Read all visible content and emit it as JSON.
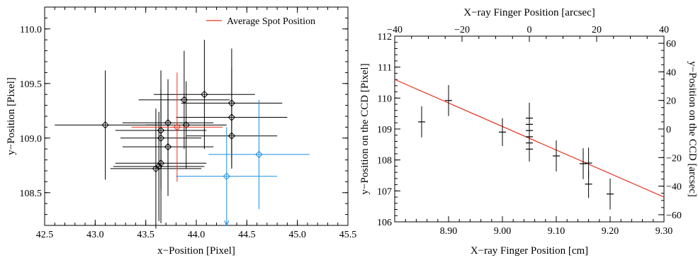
{
  "chart_data": [
    {
      "type": "scatter",
      "xlabel": "x−Position [Pixel]",
      "ylabel": "y−Position [Pixel]",
      "xlim": [
        42.5,
        45.5
      ],
      "ylim": [
        108.2,
        110.2
      ],
      "xticks": [
        "42.5",
        "43.0",
        "43.5",
        "44.0",
        "44.5",
        "45.0",
        "45.5"
      ],
      "yticks": [
        "108.5",
        "109.0",
        "109.5",
        "110.0"
      ],
      "legend": {
        "placement": "top-right",
        "label": "Average Spot Position",
        "color": "#e8321e"
      },
      "series": [
        {
          "color": "#000000",
          "marker": "diamond",
          "points": [
            {
              "x": 43.1,
              "y": 109.12,
              "xerr": 0.5,
              "yerr": 0.5
            },
            {
              "x": 43.6,
              "y": 108.72,
              "xerr": 0.45,
              "yerr": 0.55
            },
            {
              "x": 43.63,
              "y": 108.74,
              "xerr": 0.45,
              "yerr": 0.5
            },
            {
              "x": 43.65,
              "y": 108.77,
              "xerr": 0.45,
              "yerr": 0.55
            },
            {
              "x": 43.65,
              "y": 109.07,
              "xerr": 0.45,
              "yerr": 0.55
            },
            {
              "x": 43.65,
              "y": 109.0,
              "xerr": 0.4,
              "yerr": 0.45
            },
            {
              "x": 43.72,
              "y": 109.14,
              "xerr": 0.45,
              "yerr": 0.4
            },
            {
              "x": 43.72,
              "y": 108.92,
              "xerr": 0.45,
              "yerr": 0.45
            },
            {
              "x": 43.88,
              "y": 109.35,
              "xerr": 0.45,
              "yerr": 0.45
            },
            {
              "x": 43.9,
              "y": 109.12,
              "xerr": 0.4,
              "yerr": 0.4
            },
            {
              "x": 44.08,
              "y": 109.4,
              "xerr": 0.5,
              "yerr": 0.5
            },
            {
              "x": 44.35,
              "y": 109.19,
              "xerr": 0.55,
              "yerr": 0.45
            },
            {
              "x": 44.35,
              "y": 109.32,
              "xerr": 0.5,
              "yerr": 0.5
            },
            {
              "x": 44.35,
              "y": 109.02,
              "xerr": 0.45,
              "yerr": 0.3
            }
          ]
        },
        {
          "color": "#1a8fe0",
          "marker": "diamond",
          "points": [
            {
              "x": 44.62,
              "y": 108.85,
              "xerr": 0.5,
              "yerr": 0.5
            },
            {
              "x": 44.3,
              "y": 108.65,
              "xerr": 0.5,
              "yerr": 0.45,
              "lower_limit_arrow": true
            }
          ]
        },
        {
          "name": "Average Spot Position",
          "color": "#e8321e",
          "marker": "diamond",
          "points": [
            {
              "x": 43.81,
              "y": 109.1,
              "xerr": 0.45,
              "yerr": 0.5
            }
          ]
        }
      ]
    },
    {
      "type": "scatter",
      "xlabel": "X−ray Finger Position [cm]",
      "ylabel": "y−Position on the CCD [Pixel]",
      "x2label": "X−ray Finger Position [arcsec]",
      "y2label": "y−Position on the CCD [arcsec]",
      "xlim": [
        8.8,
        9.3
      ],
      "ylim": [
        106,
        112
      ],
      "x2lim": [
        -40,
        40
      ],
      "y2lim": [
        -65,
        65
      ],
      "xticks": [
        "8.90",
        "9.00",
        "9.10",
        "9.20",
        "9.30"
      ],
      "yticks": [
        "106",
        "107",
        "108",
        "109",
        "110",
        "111",
        "112"
      ],
      "x2ticks": [
        "−40",
        "−20",
        "0",
        "20",
        "40"
      ],
      "y2ticks": [
        "−60",
        "−40",
        "−20",
        "0",
        "20",
        "40",
        "60"
      ],
      "fit_line": {
        "color": "#e8321e",
        "x": [
          8.8,
          9.3
        ],
        "y": [
          110.6,
          106.8
        ]
      },
      "series": [
        {
          "color": "#000000",
          "marker": "plus",
          "points": [
            {
              "x": 8.85,
              "y": 109.23,
              "yerr": 0.5
            },
            {
              "x": 8.9,
              "y": 109.92,
              "yerr": 0.5
            },
            {
              "x": 9.0,
              "y": 108.9,
              "yerr": 0.45
            },
            {
              "x": 9.05,
              "y": 109.35,
              "yerr": 0.5
            },
            {
              "x": 9.05,
              "y": 109.15,
              "yerr": 0.5
            },
            {
              "x": 9.05,
              "y": 108.95,
              "yerr": 0.5
            },
            {
              "x": 9.05,
              "y": 108.75,
              "yerr": 0.5
            },
            {
              "x": 9.05,
              "y": 108.55,
              "yerr": 0.45
            },
            {
              "x": 9.05,
              "y": 108.35,
              "yerr": 0.4
            },
            {
              "x": 9.1,
              "y": 108.13,
              "yerr": 0.5
            },
            {
              "x": 9.15,
              "y": 107.88,
              "yerr": 0.5
            },
            {
              "x": 9.16,
              "y": 107.9,
              "yerr": 0.5
            },
            {
              "x": 9.16,
              "y": 107.22,
              "yerr": 0.45
            },
            {
              "x": 9.2,
              "y": 106.9,
              "yerr": 0.5
            }
          ]
        }
      ]
    }
  ]
}
